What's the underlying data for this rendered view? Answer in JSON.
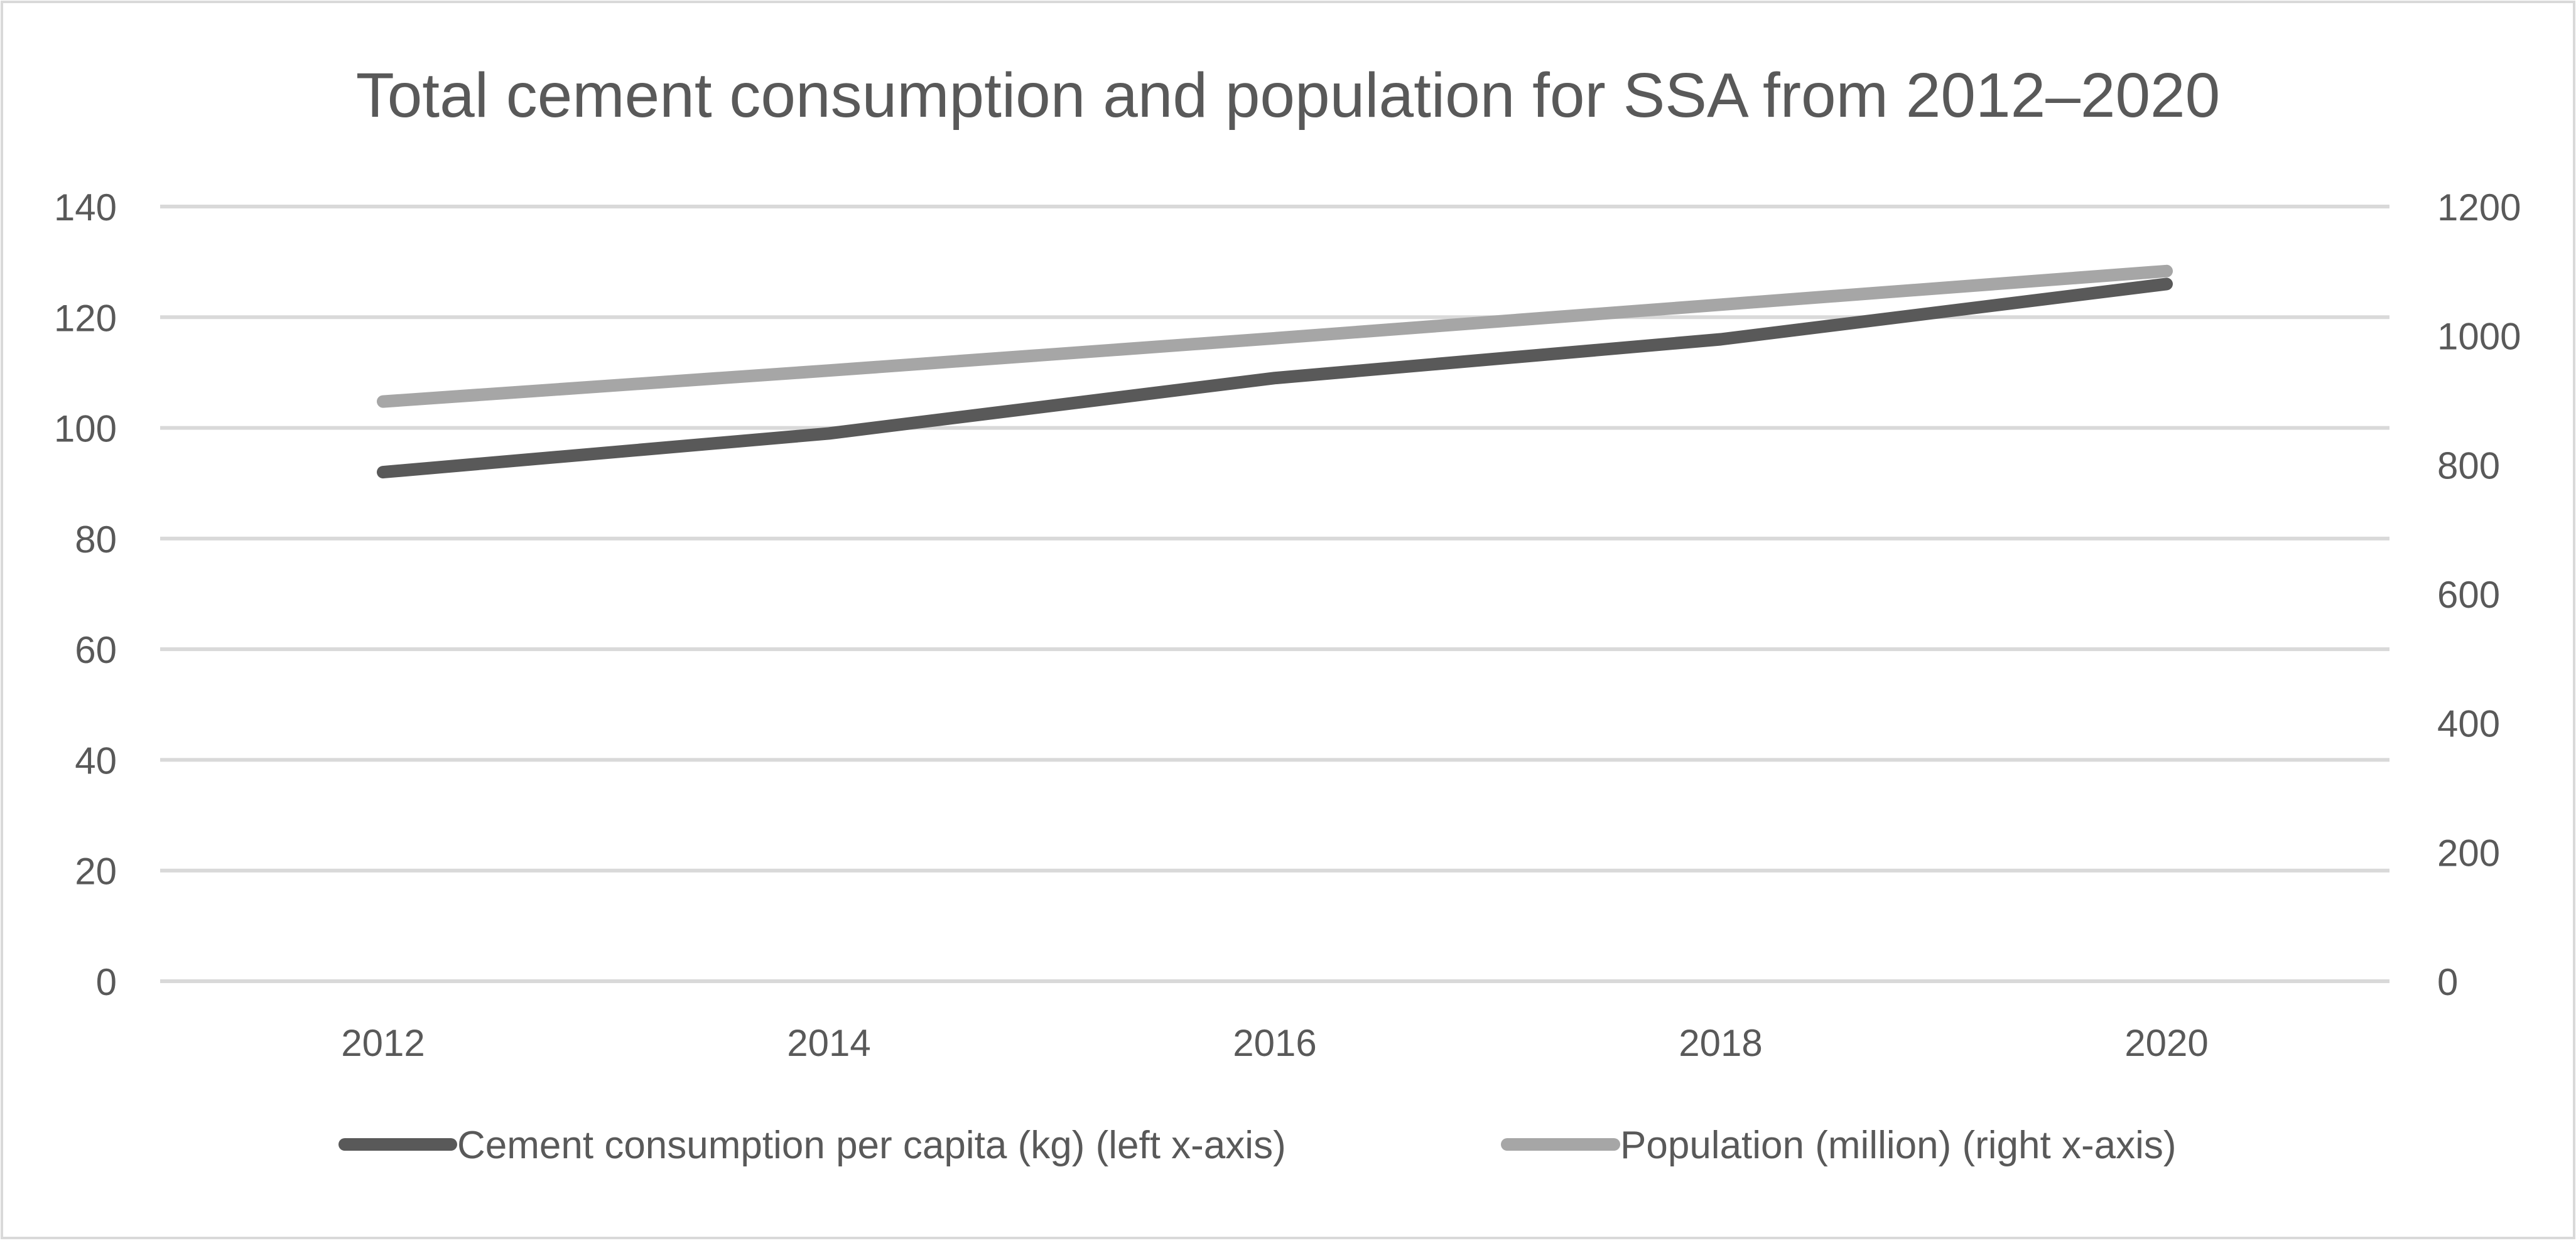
{
  "chart_data": {
    "type": "line",
    "title": "Total cement consumption and population for SSA from 2012–2020",
    "categories": [
      "2012",
      "2014",
      "2016",
      "2018",
      "2020"
    ],
    "y_left": {
      "ylim": [
        0,
        140
      ],
      "ticks": [
        "0",
        "20",
        "40",
        "60",
        "80",
        "100",
        "120",
        "140"
      ]
    },
    "y_right": {
      "ylim": [
        0,
        1200
      ],
      "ticks": [
        "0",
        "200",
        "400",
        "600",
        "800",
        "1000",
        "1200"
      ]
    },
    "grid": true,
    "legend_position": "bottom",
    "series": [
      {
        "name": "Cement consumption per capita (kg) (left x-axis)",
        "axis": "left",
        "color": "#595959",
        "values": [
          92,
          99,
          109,
          116,
          126
        ]
      },
      {
        "name": "Population (million) (right x-axis)",
        "axis": "right",
        "color": "#a6a6a6",
        "values": [
          898,
          946,
          996,
          1048,
          1100
        ]
      }
    ]
  }
}
